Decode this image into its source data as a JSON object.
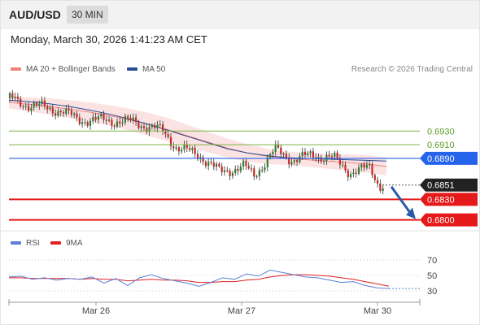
{
  "header": {
    "symbol": "AUD/USD",
    "interval": "30 MIN"
  },
  "timestamp": "Monday, March 30, 2026 1:41:23 AM CET",
  "legend": {
    "bollinger_label": "MA 20 + Bollinger Bands",
    "ma50_label": "MA 50",
    "bollinger_color": "#f08080",
    "ma50_color": "#2a4f96"
  },
  "attribution": "Research © 2026 Trading Central",
  "rsi_legend": {
    "rsi_label": "RSI",
    "ma_label": "9MA",
    "rsi_color": "#5b7fd6",
    "ma_color": "#e02020"
  },
  "colors": {
    "resistance": "#7cb342",
    "pivot": "#2563eb",
    "support": "#e51919",
    "current": "#222222",
    "arrow": "#2a5aa8",
    "up_candle": "#2e7d32",
    "down_candle": "#c62828"
  },
  "chart_data": [
    {
      "type": "line",
      "title": "",
      "x_ticks": [
        "Mar 26",
        "Mar 27",
        "Mar 30"
      ],
      "price_levels": [
        {
          "label": "0.6930",
          "value": 0.693,
          "kind": "resistance"
        },
        {
          "label": "0.6910",
          "value": 0.691,
          "kind": "resistance"
        },
        {
          "label": "0.6890",
          "value": 0.689,
          "kind": "pivot"
        },
        {
          "label": "0.6851",
          "value": 0.6851,
          "kind": "current"
        },
        {
          "label": "0.6830",
          "value": 0.683,
          "kind": "support"
        },
        {
          "label": "0.6800",
          "value": 0.68,
          "kind": "support"
        }
      ],
      "projection": {
        "from": 0.6851,
        "to": 0.68
      },
      "series": [
        {
          "name": "MA 20 + Bollinger Bands",
          "values": [
            0.6972,
            0.6969,
            0.6966,
            0.6962,
            0.6958,
            0.6953,
            0.6947,
            0.694,
            0.6932,
            0.6923,
            0.6914,
            0.6905,
            0.6898,
            0.6893,
            0.689,
            0.6888,
            0.6886,
            0.6884,
            0.6882,
            0.6878
          ]
        },
        {
          "name": "MA 50",
          "values": [
            0.6975,
            0.6973,
            0.697,
            0.6966,
            0.6961,
            0.6955,
            0.6948,
            0.694,
            0.6931,
            0.6922,
            0.6913,
            0.6904,
            0.6898,
            0.6894,
            0.6891,
            0.689,
            0.6889,
            0.6888,
            0.6887,
            0.6886
          ]
        }
      ]
    },
    {
      "type": "line",
      "title": "",
      "y_ticks": [
        70,
        50,
        30
      ],
      "ylim": [
        20,
        80
      ],
      "series": [
        {
          "name": "RSI",
          "values": [
            48,
            49,
            45,
            47,
            44,
            46,
            45,
            48,
            40,
            46,
            37,
            47,
            51,
            46,
            43,
            40,
            36,
            41,
            47,
            45,
            52,
            49,
            57,
            54,
            51,
            48,
            47,
            44,
            41,
            42,
            37,
            34,
            33
          ]
        },
        {
          "name": "9MA",
          "values": [
            47,
            47,
            46,
            46,
            46,
            46,
            45,
            46,
            45,
            45,
            43,
            44,
            45,
            44,
            44,
            43,
            41,
            41,
            42,
            42,
            44,
            45,
            48,
            50,
            51,
            51,
            50,
            49,
            47,
            45,
            42,
            39,
            36
          ]
        }
      ]
    }
  ]
}
